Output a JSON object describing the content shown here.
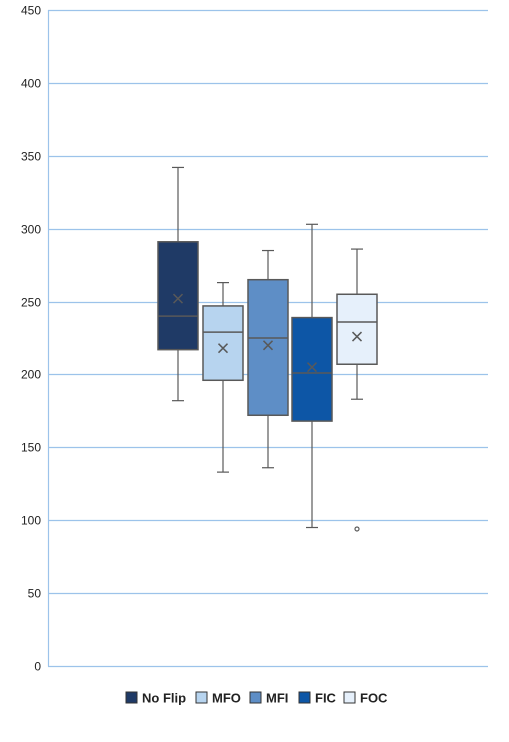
{
  "chart_data": {
    "type": "box",
    "title": "",
    "xlabel": "",
    "ylabel": "",
    "ylim": [
      0,
      450
    ],
    "y_ticks": [
      "0",
      "50",
      "100",
      "150",
      "200",
      "250",
      "300",
      "350",
      "400",
      "450"
    ],
    "y_tick_values": [
      0,
      50,
      100,
      150,
      200,
      250,
      300,
      350,
      400,
      450
    ],
    "grid": true,
    "legend_position": "bottom",
    "series": [
      {
        "name": "No Flip",
        "color": "#1f3a66",
        "min": 182,
        "q1": 217,
        "median": 240,
        "q3": 291,
        "max": 342,
        "mean": 252,
        "outliers": []
      },
      {
        "name": "MFO",
        "color": "#b7d4ef",
        "min": 133,
        "q1": 196,
        "median": 229,
        "q3": 247,
        "max": 263,
        "mean": 218,
        "outliers": []
      },
      {
        "name": "MFI",
        "color": "#5e8ec6",
        "min": 136,
        "q1": 172,
        "median": 225,
        "q3": 265,
        "max": 285,
        "mean": 220,
        "outliers": []
      },
      {
        "name": "FIC",
        "color": "#0d56a6",
        "min": 95,
        "q1": 168,
        "median": 201,
        "q3": 239,
        "max": 303,
        "mean": 205,
        "outliers": []
      },
      {
        "name": "FOC",
        "color": "#e6f0fb",
        "min": 183,
        "q1": 207,
        "median": 236,
        "q3": 255,
        "max": 286,
        "mean": 226,
        "outliers": [
          94
        ]
      }
    ]
  }
}
